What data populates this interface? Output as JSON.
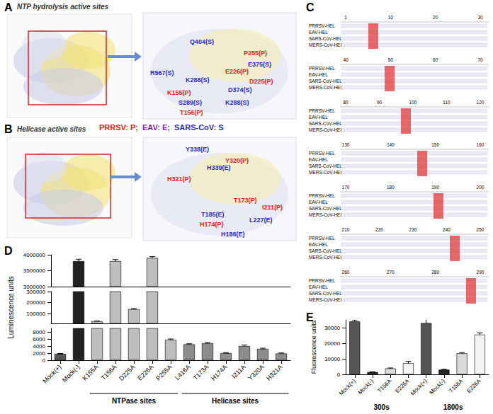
{
  "panels": {
    "A": {
      "letter": "A",
      "title": "NTP hydrolysis active sites",
      "labels": [
        {
          "text": "Q404(S)",
          "color": "#2a2ad0"
        },
        {
          "text": "P255(P)",
          "color": "#e02020"
        },
        {
          "text": "R567(S)",
          "color": "#2a2ad0"
        },
        {
          "text": "K288(S)",
          "color": "#2a2ad0"
        },
        {
          "text": "E226(P)",
          "color": "#e02020"
        },
        {
          "text": "E375(S)",
          "color": "#2a2ad0"
        },
        {
          "text": "D225(P)",
          "color": "#e02020"
        },
        {
          "text": "D374(S)",
          "color": "#2a2ad0"
        },
        {
          "text": "K155(P)",
          "color": "#e02020"
        },
        {
          "text": "S289(S)",
          "color": "#2a2ad0"
        },
        {
          "text": "T156(P)",
          "color": "#e02020"
        },
        {
          "text": "K288(S)",
          "color": "#2a2ad0"
        }
      ]
    },
    "B": {
      "letter": "B",
      "title": "Helicase active sites",
      "legend": [
        {
          "text": "PRRSV: P;",
          "color": "#e02020"
        },
        {
          "text": "EAV: E;",
          "color": "#7a2aa0"
        },
        {
          "text": "SARS-CoV: S",
          "color": "#2a2ad0"
        }
      ],
      "labels": [
        {
          "text": "Y338(E)",
          "color": "#2a2ad0"
        },
        {
          "text": "Y320(P)",
          "color": "#e02020"
        },
        {
          "text": "H339(E)",
          "color": "#2a2ad0"
        },
        {
          "text": "H321(P)",
          "color": "#e02020"
        },
        {
          "text": "T173(P)",
          "color": "#e02020"
        },
        {
          "text": "I211(P)",
          "color": "#e02020"
        },
        {
          "text": "T185(E)",
          "color": "#2a2ad0"
        },
        {
          "text": "H174(P)",
          "color": "#e02020"
        },
        {
          "text": "L227(E)",
          "color": "#2a2ad0"
        },
        {
          "text": "H186(E)",
          "color": "#2a2ad0"
        }
      ]
    },
    "C": {
      "letter": "C",
      "sequences": [
        "PRRSV-HEL",
        "EAV-HEL",
        "SARS-CoV-HEL",
        "MERS-CoV-HEL"
      ],
      "rulers": [
        [
          1,
          10,
          20,
          30
        ],
        [
          40,
          50,
          60,
          70
        ],
        [
          80,
          90,
          100,
          110,
          120
        ],
        [
          130,
          140,
          150,
          160
        ],
        [
          170,
          180,
          190,
          200
        ],
        [
          210,
          220,
          230,
          240,
          250
        ],
        [
          260,
          270,
          280,
          290
        ]
      ]
    }
  },
  "chart_data": [
    {
      "panel": "D",
      "type": "bar",
      "y_label": "Luminescence units",
      "categories": [
        "Mock(+)",
        "Mock(-)",
        "K155A",
        "T156A",
        "D225A",
        "E226A",
        "P255A",
        "L416A",
        "T173A",
        "H174A",
        "I211A",
        "Y320A",
        "H321A"
      ],
      "values": [
        1800,
        3800000,
        30000,
        3800000,
        140000,
        3900000,
        5800,
        4500,
        4800,
        2000,
        4000,
        3200,
        1900
      ],
      "errors": [
        100,
        60000,
        1000,
        50000,
        5000,
        40000,
        200,
        150,
        200,
        150,
        300,
        200,
        150
      ],
      "colors": [
        "#555555",
        "#222222",
        "#bdbdbd",
        "#bdbdbd",
        "#bdbdbd",
        "#bdbdbd",
        "#bdbdbd",
        "#8c8c8c",
        "#8c8c8c",
        "#8c8c8c",
        "#8c8c8c",
        "#8c8c8c",
        "#8c8c8c"
      ],
      "segments": [
        {
          "ylim": [
            0,
            9000
          ],
          "yticks": [
            0,
            2000,
            4000,
            6000,
            8000
          ]
        },
        {
          "ylim": [
            10000,
            300000
          ],
          "yticks": [
            100000,
            200000,
            300000
          ]
        },
        {
          "ylim": [
            3000000,
            4000000
          ],
          "yticks": [
            3000000,
            3500000,
            4000000
          ]
        }
      ],
      "groups": [
        {
          "label": "NTPase sites",
          "from": "K155A",
          "to": "P255A"
        },
        {
          "label": "Helicase sites",
          "from": "L416A",
          "to": "H321A"
        }
      ]
    },
    {
      "panel": "E",
      "type": "bar",
      "y_label": "Fluorescence units",
      "ylim": [
        0,
        35000
      ],
      "yticks": [
        0,
        10000,
        20000,
        30000
      ],
      "colors": [
        "#555555",
        "#222222",
        "#d9d9d9",
        "#f4f4f4"
      ],
      "groups": [
        {
          "label": "300s",
          "categories": [
            "Mock(+)",
            "Mock(-)",
            "T156A",
            "E226A"
          ],
          "values": [
            34000,
            1500,
            3800,
            7200
          ],
          "errors": [
            900,
            150,
            300,
            1200
          ]
        },
        {
          "label": "1800s",
          "categories": [
            "Mock(+)",
            "Mock(-)",
            "T156A",
            "E226A"
          ],
          "values": [
            33000,
            3000,
            13500,
            25500
          ],
          "errors": [
            2500,
            250,
            500,
            1200
          ]
        }
      ]
    }
  ]
}
